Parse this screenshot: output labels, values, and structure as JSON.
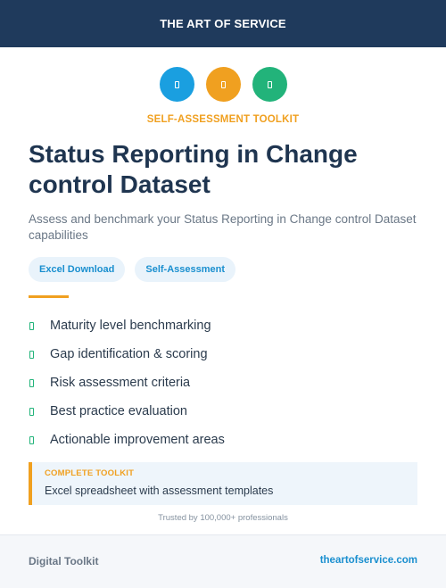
{
  "header": {
    "brand": "THE ART OF SERVICE"
  },
  "icons": [
    {
      "name": "document-icon",
      "color": "#1a9fe0"
    },
    {
      "name": "document-icon",
      "color": "#f0a020"
    },
    {
      "name": "document-icon",
      "color": "#22b37a"
    }
  ],
  "kicker": "SELF-ASSESSMENT TOOLKIT",
  "title": "Status Reporting in Change control Dataset",
  "subtitle": "Assess and benchmark your Status Reporting in Change control Dataset capabilities",
  "tags": [
    "Excel Download",
    "Self-Assessment"
  ],
  "features": [
    "Maturity level benchmarking",
    "Gap identification & scoring",
    "Risk assessment criteria",
    "Best practice evaluation",
    "Actionable improvement areas"
  ],
  "callout": {
    "label": "COMPLETE TOOLKIT",
    "text": "Excel spreadsheet with assessment templates"
  },
  "trust": "Trusted by 100,000+ professionals",
  "footer": {
    "left": "Digital Toolkit",
    "right": "theartofservice.com"
  }
}
